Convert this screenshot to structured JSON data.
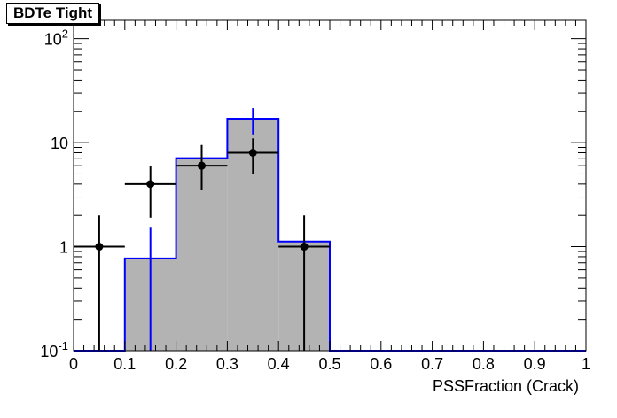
{
  "chart_data": {
    "type": "bar",
    "title": "BDTe Tight",
    "xlabel": "PSSFraction (Crack)",
    "ylabel": "",
    "xlim": [
      0,
      1
    ],
    "ylim": [
      0.1,
      150
    ],
    "yscale": "log",
    "grid": false,
    "legend": "none",
    "bin_edges": [
      0,
      0.1,
      0.2,
      0.3,
      0.4,
      0.5,
      0.6,
      0.7,
      0.8,
      0.9,
      1.0
    ],
    "x_ticks": [
      "0",
      "0.1",
      "0.2",
      "0.3",
      "0.4",
      "0.5",
      "0.6",
      "0.7",
      "0.8",
      "0.9",
      "1"
    ],
    "y_ticks": [
      {
        "value": 0.1,
        "base": "10",
        "exp": "-1"
      },
      {
        "value": 1,
        "base": "1",
        "exp": ""
      },
      {
        "value": 10,
        "base": "10",
        "exp": ""
      },
      {
        "value": 100,
        "base": "10",
        "exp": "2"
      }
    ],
    "series": [
      {
        "kind": "histogram",
        "fill_color": "#b3b3b3",
        "line_color": "#0000ff",
        "values": [
          0,
          0.77,
          7.1,
          17.0,
          1.12,
          0,
          0,
          0,
          0,
          0
        ],
        "errors_up": [
          null,
          1.55,
          null,
          21.5,
          null,
          null,
          null,
          null,
          null,
          null
        ],
        "errors_down": [
          null,
          0.1,
          null,
          12.0,
          null,
          null,
          null,
          null,
          null,
          null
        ]
      },
      {
        "kind": "points",
        "color": "#000000",
        "x": [
          0.05,
          0.15,
          0.25,
          0.35,
          0.45
        ],
        "y": [
          1,
          4,
          6,
          8,
          1
        ],
        "y_high": [
          2.0,
          6.0,
          9.5,
          11.0,
          2.0
        ],
        "y_low": [
          0.1,
          1.9,
          3.5,
          5.0,
          0.1
        ],
        "x_half_width": 0.05
      }
    ]
  }
}
